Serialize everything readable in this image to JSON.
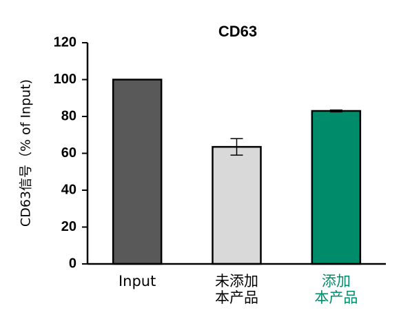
{
  "chart_data": {
    "type": "bar",
    "title": "CD63",
    "y_label": "CD63信号（% of Input)",
    "categories": [
      "Input",
      "未添加\n本产品",
      "添加\n本产品"
    ],
    "category_label_colors": [
      "#000000",
      "#000000",
      "#008c6a"
    ],
    "values": [
      100,
      63.5,
      83
    ],
    "errors": [
      null,
      4.5,
      0.5
    ],
    "colors": [
      "#595959",
      "#d9d9d9",
      "#008c6a"
    ],
    "ylim": [
      0,
      120
    ],
    "yticks": [
      0,
      20,
      40,
      60,
      80,
      100,
      120
    ],
    "grid": false
  }
}
